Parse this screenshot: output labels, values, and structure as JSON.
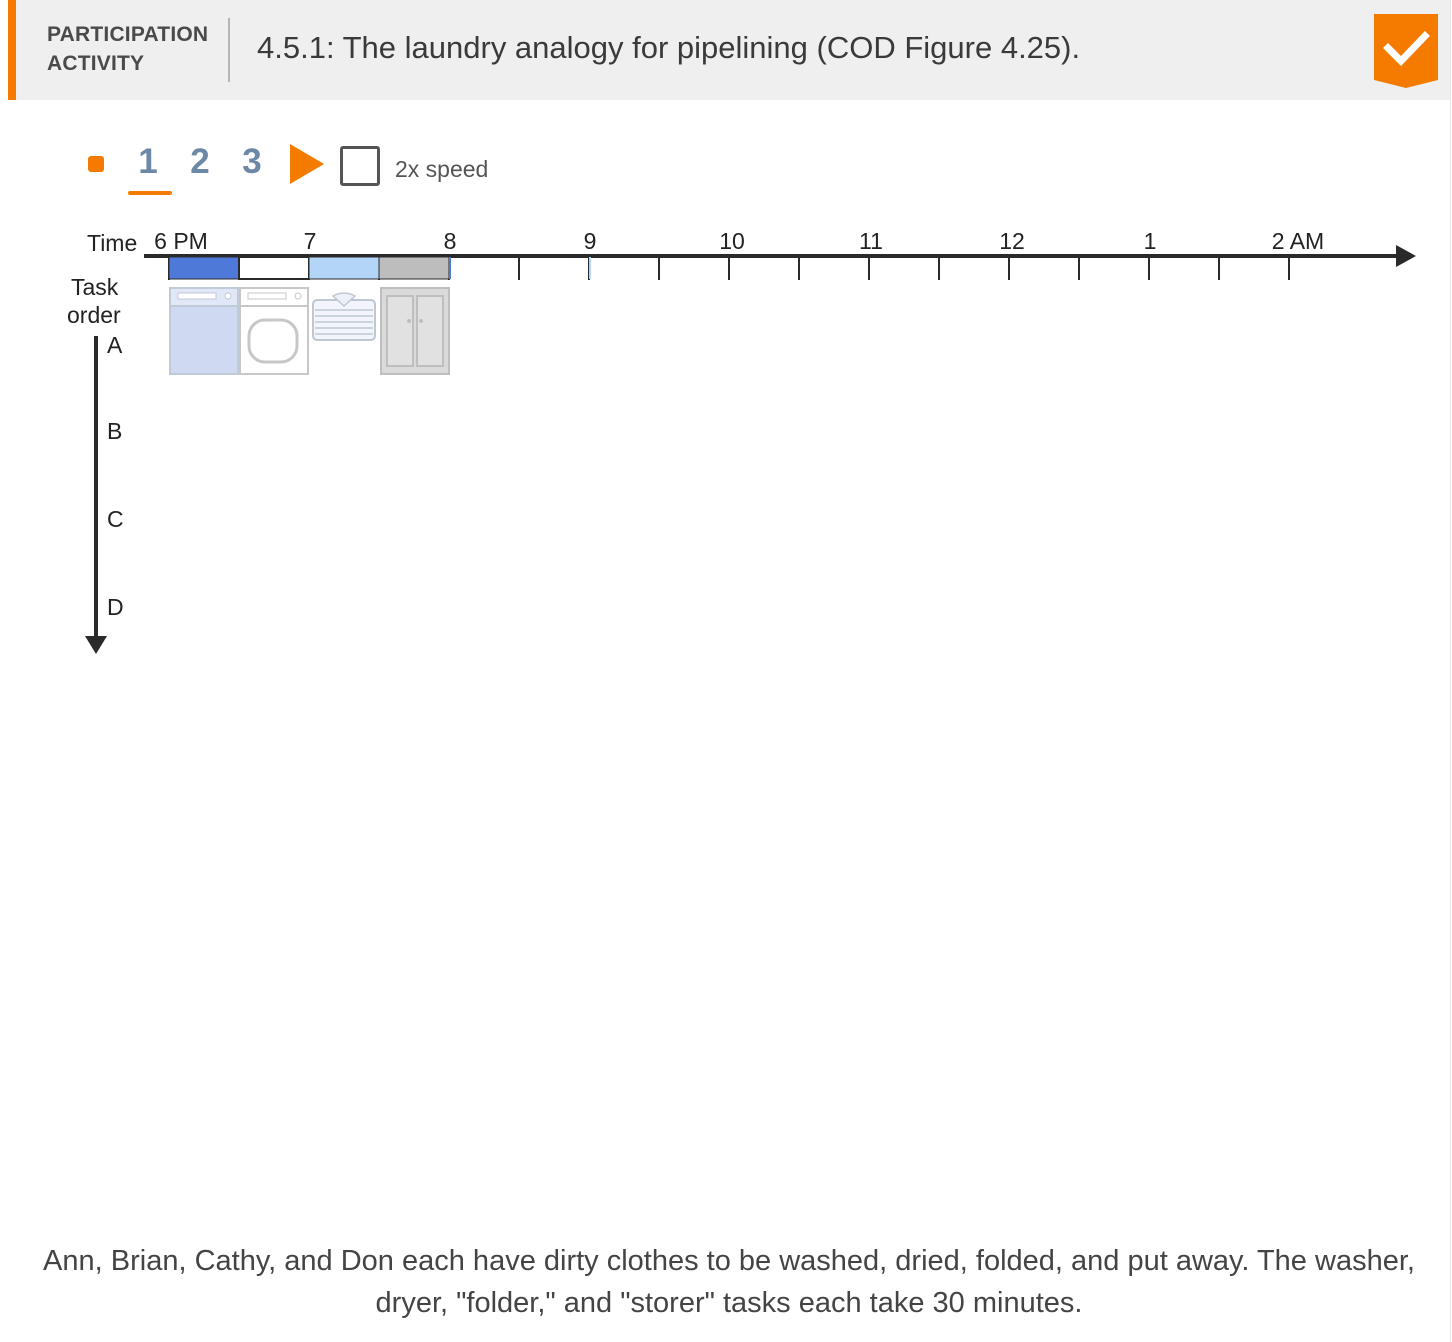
{
  "header": {
    "activity_type_line1": "PARTICIPATION",
    "activity_type_line2": "ACTIVITY",
    "title": "4.5.1: The laundry analogy for pipelining (COD Figure 4.25).",
    "completion_icon": "checkmark-icon",
    "accent_color": "#f47b00"
  },
  "controls": {
    "stop_icon": "stop-icon",
    "steps": [
      "1",
      "2",
      "3"
    ],
    "active_step": "1",
    "play_icon": "play-icon",
    "speed_label": "2x speed",
    "speed_checked": false
  },
  "diagram": {
    "time_label": "Time",
    "task_order_line1": "Task",
    "task_order_line2": "order",
    "time_ticks": [
      "6 PM",
      "7",
      "8",
      "9",
      "10",
      "11",
      "12",
      "1",
      "2 AM"
    ],
    "tasks": [
      "A",
      "B",
      "C",
      "D"
    ],
    "stage_colors": {
      "wash": "#4f79d8",
      "dry": "#ffffff",
      "fold": "#b3d6f8",
      "store": "#bdbdbd"
    },
    "appliance_icons": [
      "washer-icon",
      "dryer-icon",
      "folder-icon",
      "storer-icon"
    ]
  },
  "caption": {
    "line1": "Ann, Brian, Cathy, and Don each have dirty clothes to be washed, dried, folded, and put away. The washer,",
    "line2": "dryer, \"folder,\" and \"storer\" tasks each take 30 minutes."
  }
}
